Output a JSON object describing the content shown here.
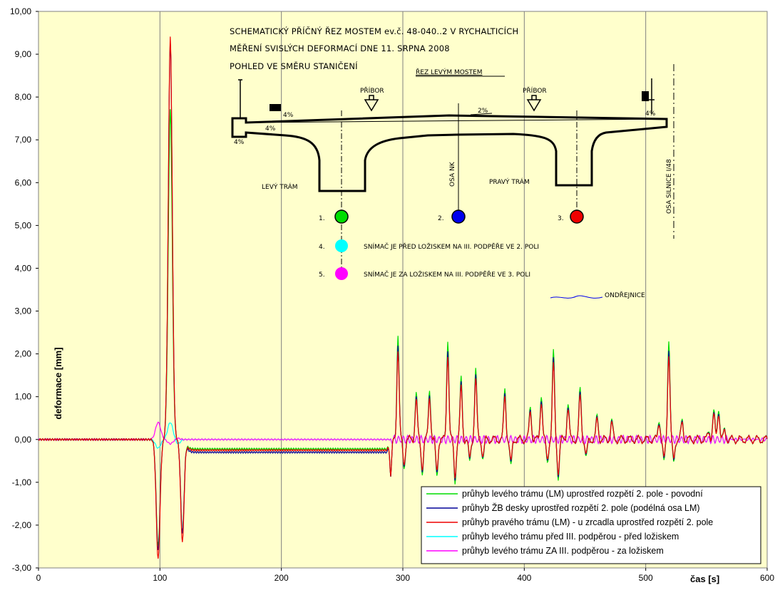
{
  "chart_data": {
    "type": "line",
    "xlabel": "čas [s]",
    "ylabel": "deformace [mm]",
    "xlim": [
      0,
      600
    ],
    "ylim": [
      -3,
      10
    ],
    "x_ticks": [
      "0",
      "100",
      "200",
      "300",
      "400",
      "500",
      "600"
    ],
    "y_ticks": [
      "-3,00",
      "-2,00",
      "-1,00",
      "0,00",
      "1,00",
      "2,00",
      "3,00",
      "4,00",
      "5,00",
      "6,00",
      "7,00",
      "8,00",
      "9,00",
      "10,00"
    ],
    "grid": "vertical",
    "legend_position": "bottom-right",
    "plot_background": "#ffffcc",
    "series": [
      {
        "name": "průhyb levého trámu (LM) uprostřed rozpětí 2. pole - povodní",
        "color": "#00dd00"
      },
      {
        "name": "průhyb ŽB desky uprostřed rozpětí 2. pole (podélná osa LM)",
        "color": "#000099"
      },
      {
        "name": "průhyb pravého trámu (LM) - u zrcadla uprostřed rozpětí 2. pole",
        "color": "#ee0000"
      },
      {
        "name": "průhyb levého trámu před III.  podpěrou - před ložiskem",
        "color": "#00ffff"
      },
      {
        "name": "průhyb levého trámu ZA III. podpěrou - za ložiskem",
        "color": "#ff00ff"
      }
    ],
    "peaks": {
      "green": [
        [
          0,
          0
        ],
        [
          60,
          0.05
        ],
        [
          98,
          -2.5
        ],
        [
          103,
          0.2
        ],
        [
          108,
          7.7
        ],
        [
          112,
          0.1
        ],
        [
          118,
          -2.2
        ],
        [
          122,
          -0.25
        ],
        [
          290,
          -0.2
        ],
        [
          296,
          2.6
        ],
        [
          300,
          0.1
        ],
        [
          337,
          2.3
        ],
        [
          345,
          2.5
        ],
        [
          423,
          1.95
        ],
        [
          519,
          2.4
        ],
        [
          600,
          0
        ]
      ],
      "blue": [
        [
          0,
          0
        ],
        [
          98,
          -2.6
        ],
        [
          108,
          9.3
        ],
        [
          118,
          -2.2
        ],
        [
          122,
          -0.3
        ],
        [
          290,
          -0.3
        ],
        [
          296,
          2.2
        ],
        [
          300,
          0.1
        ],
        [
          337,
          2.2
        ],
        [
          345,
          -1.1
        ],
        [
          423,
          1.8
        ],
        [
          519,
          2.2
        ],
        [
          600,
          -0.05
        ]
      ],
      "red": [
        [
          0,
          0
        ],
        [
          98,
          -2.8
        ],
        [
          108,
          9.4
        ],
        [
          118,
          -2.4
        ],
        [
          122,
          -0.25
        ],
        [
          290,
          -0.25
        ],
        [
          296,
          2.1
        ],
        [
          300,
          0.1
        ],
        [
          337,
          2.1
        ],
        [
          423,
          1.7
        ],
        [
          519,
          2.0
        ],
        [
          600,
          -0.05
        ]
      ],
      "cyan": [
        [
          0,
          0
        ],
        [
          98,
          -0.2
        ],
        [
          108,
          0.4
        ],
        [
          115,
          -0.05
        ],
        [
          600,
          0
        ]
      ],
      "magenta": [
        [
          0,
          0
        ],
        [
          98,
          0.4
        ],
        [
          108,
          -0.1
        ],
        [
          115,
          0.1
        ],
        [
          600,
          0
        ]
      ]
    }
  },
  "diagram": {
    "title_line1": "SCHEMATICKÝ PŘÍČNÝ ŘEZ MOSTEM ev.č. 48-040..2 V RYCHALTICÍCH",
    "title_line2": "MĚŘENÍ SVISLÝCH DEFORMACÍ DNE 11. SRPNA 2008",
    "title_line3": "POHLED VE SMĚRU STANIČENÍ",
    "section_label": "ŘEZ LEVÝM MOSTEM",
    "pribor_left": "PŘÍBOR",
    "pribor_right": "PŘÍBOR",
    "slope_center": "2%",
    "slope_left_1": "4%",
    "slope_left_2": "4%",
    "slope_left_3": "4%",
    "slope_right": "4%",
    "left_beam": "LEVÝ TRÁM",
    "right_beam": "PRAVÝ TRÁM",
    "axis_nk": "OSA NK",
    "axis_road": "OSA SILNICE I/48",
    "sensor1_num": "1.",
    "sensor2_num": "2.",
    "sensor3_num": "3.",
    "sensor4_num": "4.",
    "sensor5_num": "5.",
    "sensor4_text": "SNÍMAČ JE PŘED LOŽISKEM NA III. PODPĚŘE VE 2. POLI",
    "sensor5_text": "SNÍMAČ JE ZA LOŽISKEM NA III. PODPĚŘE VE 3. POLI",
    "river_label": "ONDŘEJNICE",
    "sensor_colors": [
      "#00dd00",
      "#0000ee",
      "#ee0000",
      "#00ffff",
      "#ff00ff"
    ]
  }
}
